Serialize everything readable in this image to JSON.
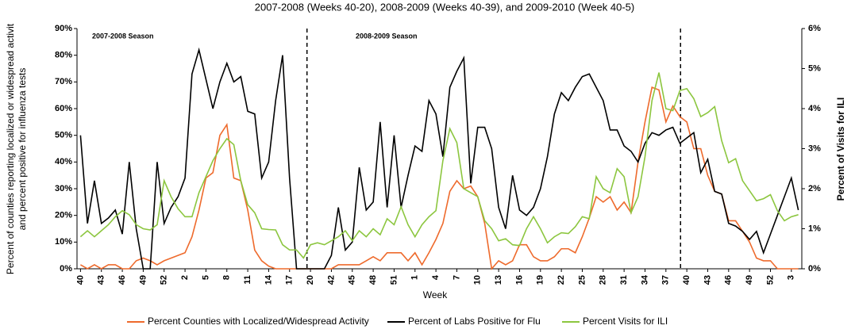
{
  "chart_data": {
    "type": "line",
    "title": "2007-2008 (Weeks 40-20), 2008-2009 (Weeks 40-39), and 2009-2010 (Week 40-5)",
    "x_label": "Week",
    "y_label": [
      "Percent of counties reporting localized or widespread activit",
      "and percent positive for influenza tests"
    ],
    "y2_label": "Percent of Visits for ILI",
    "annotations": [
      "2007-2008 Season",
      "2008-2009 Season"
    ],
    "categories": [
      "40",
      null,
      null,
      "43",
      null,
      null,
      "46",
      null,
      null,
      "49",
      null,
      null,
      "52",
      null,
      null,
      "2",
      null,
      null,
      "5",
      null,
      null,
      "8",
      null,
      null,
      "11",
      null,
      null,
      "14",
      null,
      null,
      "17",
      null,
      null,
      "20",
      null,
      null,
      "42",
      null,
      null,
      "45",
      null,
      null,
      "48",
      null,
      null,
      "51",
      null,
      null,
      "1",
      null,
      null,
      "4",
      null,
      null,
      "7",
      null,
      null,
      "10",
      null,
      null,
      "13",
      null,
      null,
      "16",
      null,
      null,
      "19",
      null,
      null,
      "22",
      null,
      null,
      "25",
      null,
      null,
      "28",
      null,
      null,
      "31",
      null,
      null,
      "34",
      null,
      null,
      "37",
      null,
      null,
      "40",
      null,
      null,
      "43",
      null,
      null,
      "46",
      null,
      null,
      "49",
      null,
      null,
      "52",
      null,
      null,
      "3",
      null
    ],
    "ylim": [
      0,
      90
    ],
    "yticks": [
      {
        "value": 0,
        "label": "0%"
      },
      {
        "value": 10,
        "label": "10%"
      },
      {
        "value": 20,
        "label": "20%"
      },
      {
        "value": 30,
        "label": "30%"
      },
      {
        "value": 40,
        "label": "40%"
      },
      {
        "value": 50,
        "label": "50%"
      },
      {
        "value": 60,
        "label": "60%"
      },
      {
        "value": 70,
        "label": "70%"
      },
      {
        "value": 80,
        "label": "80%"
      },
      {
        "value": 90,
        "label": "90%"
      }
    ],
    "y2lim": [
      0,
      6
    ],
    "y2ticks": [
      {
        "value": 0,
        "label": "0%"
      },
      {
        "value": 1,
        "label": "1%"
      },
      {
        "value": 2,
        "label": "2%"
      },
      {
        "value": 3,
        "label": "3%"
      },
      {
        "value": 4,
        "label": "4%"
      },
      {
        "value": 5,
        "label": "5%"
      },
      {
        "value": 6,
        "label": "6%"
      }
    ],
    "legend": "bottom",
    "series": [
      {
        "name": "Percent Counties with Localized/Widespread Activity",
        "color": "#ee6a2c",
        "values": [
          1.5,
          0,
          1.5,
          0,
          1.5,
          1.5,
          0,
          0,
          3,
          4,
          3,
          1.5,
          3,
          4,
          5,
          6,
          12,
          22,
          34,
          36,
          50,
          54,
          34,
          33,
          22,
          7,
          3,
          1,
          0,
          0,
          0,
          0,
          0,
          0,
          0,
          0,
          0,
          1.5,
          1.5,
          1.5,
          1.5,
          3,
          4.5,
          3,
          6,
          6,
          6,
          3,
          6,
          1.5,
          6,
          11,
          17,
          29,
          33,
          30,
          31,
          27,
          17,
          0,
          3,
          1.5,
          3,
          9,
          9,
          4.5,
          3,
          3,
          4.5,
          7.5,
          7.5,
          6,
          12,
          19,
          27,
          25,
          27,
          22,
          25,
          21,
          40,
          55,
          68,
          67,
          55,
          61,
          57,
          55,
          45,
          45,
          35,
          29,
          28,
          18,
          18,
          14,
          10,
          4,
          3,
          3,
          0,
          0,
          0,
          0
        ]
      },
      {
        "name": "Percent of Labs Positive for Flu",
        "color": "#000000",
        "values": [
          50,
          17,
          33,
          17,
          19,
          22,
          13,
          40,
          15,
          0,
          0,
          40,
          17,
          23,
          27,
          34,
          73,
          82,
          71,
          60,
          70,
          77,
          70,
          72,
          59,
          58,
          34,
          40,
          63,
          80,
          34,
          0,
          0,
          0,
          0,
          0,
          5,
          23,
          7,
          10,
          38,
          22,
          25,
          55,
          23,
          50,
          23,
          35,
          46,
          44,
          63,
          58,
          42,
          68,
          74,
          79,
          32,
          53,
          53,
          45,
          23,
          15,
          35,
          22,
          20,
          23,
          30,
          42,
          58,
          66,
          63,
          68,
          72,
          73,
          68,
          63,
          52,
          52,
          46,
          44,
          40,
          47,
          51,
          50,
          52,
          53,
          47,
          49,
          51,
          36,
          41,
          29,
          28,
          17,
          16,
          14,
          11,
          14,
          6,
          13,
          20,
          27,
          34,
          22
        ]
      },
      {
        "name": "Percent Visits for ILI",
        "color": "#8cc63f",
        "axis": "y2",
        "values": [
          0.8,
          0.95,
          0.8,
          0.95,
          1.1,
          1.3,
          1.45,
          1.35,
          1.1,
          1.0,
          0.97,
          1.1,
          2.2,
          1.8,
          1.5,
          1.3,
          1.3,
          1.9,
          2.3,
          2.7,
          3.0,
          3.25,
          3.1,
          2.2,
          1.6,
          1.4,
          1.0,
          0.98,
          0.97,
          0.6,
          0.47,
          0.47,
          0.27,
          0.6,
          0.65,
          0.6,
          0.7,
          0.8,
          0.95,
          0.7,
          0.95,
          0.8,
          1.0,
          0.85,
          1.25,
          1.1,
          1.55,
          1.1,
          0.8,
          1.1,
          1.3,
          1.45,
          2.7,
          3.5,
          3.15,
          2.0,
          1.9,
          1.8,
          1.2,
          1.0,
          0.7,
          0.75,
          0.6,
          0.58,
          1.0,
          1.3,
          1.0,
          0.65,
          0.8,
          0.9,
          0.88,
          1.05,
          1.3,
          1.25,
          2.3,
          2.0,
          1.9,
          2.5,
          2.3,
          1.4,
          1.8,
          2.8,
          4.2,
          4.9,
          4.0,
          3.95,
          4.45,
          4.5,
          4.25,
          3.8,
          3.9,
          4.05,
          3.2,
          2.65,
          2.75,
          2.2,
          1.95,
          1.7,
          1.75,
          1.85,
          1.45,
          1.2,
          1.3,
          1.35
        ]
      }
    ]
  }
}
